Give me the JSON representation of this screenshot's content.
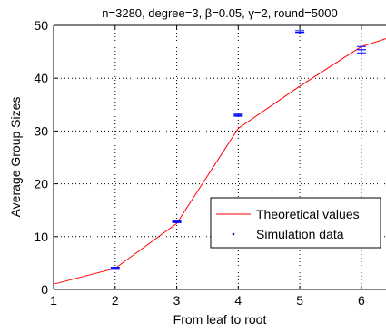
{
  "chart_data": {
    "type": "line",
    "title": "n=3280, degree=3, β=0.05, γ=2, round=5000",
    "xlabel": "From leaf to root",
    "ylabel": "Average Group Sizes",
    "xlim": [
      1,
      6.4
    ],
    "ylim": [
      0,
      50
    ],
    "x_ticks": [
      "1",
      "2",
      "3",
      "4",
      "5",
      "6"
    ],
    "y_ticks": [
      "0",
      "10",
      "20",
      "30",
      "40",
      "50"
    ],
    "grid": true,
    "legend_position": "lower-right",
    "series": [
      {
        "name": "Theoretical values",
        "style": "line",
        "color": "#ff0000",
        "points": [
          [
            1,
            1
          ],
          [
            2,
            4
          ],
          [
            3,
            12.5
          ],
          [
            4,
            30.5
          ],
          [
            5,
            38.5
          ],
          [
            6,
            46
          ],
          [
            6.4,
            47.5
          ]
        ]
      },
      {
        "name": "Simulation data",
        "style": "errorbar-marker",
        "color": "#0000ff",
        "points": [
          {
            "x": 2,
            "y": 4.0,
            "err": 0.2
          },
          {
            "x": 3,
            "y": 12.8,
            "err": 0.15
          },
          {
            "x": 4,
            "y": 33.0,
            "err": 0.2
          },
          {
            "x": 5,
            "y": 48.7,
            "err": 0.3
          },
          {
            "x": 6,
            "y": 45.4,
            "err": 0.6
          }
        ]
      }
    ]
  }
}
